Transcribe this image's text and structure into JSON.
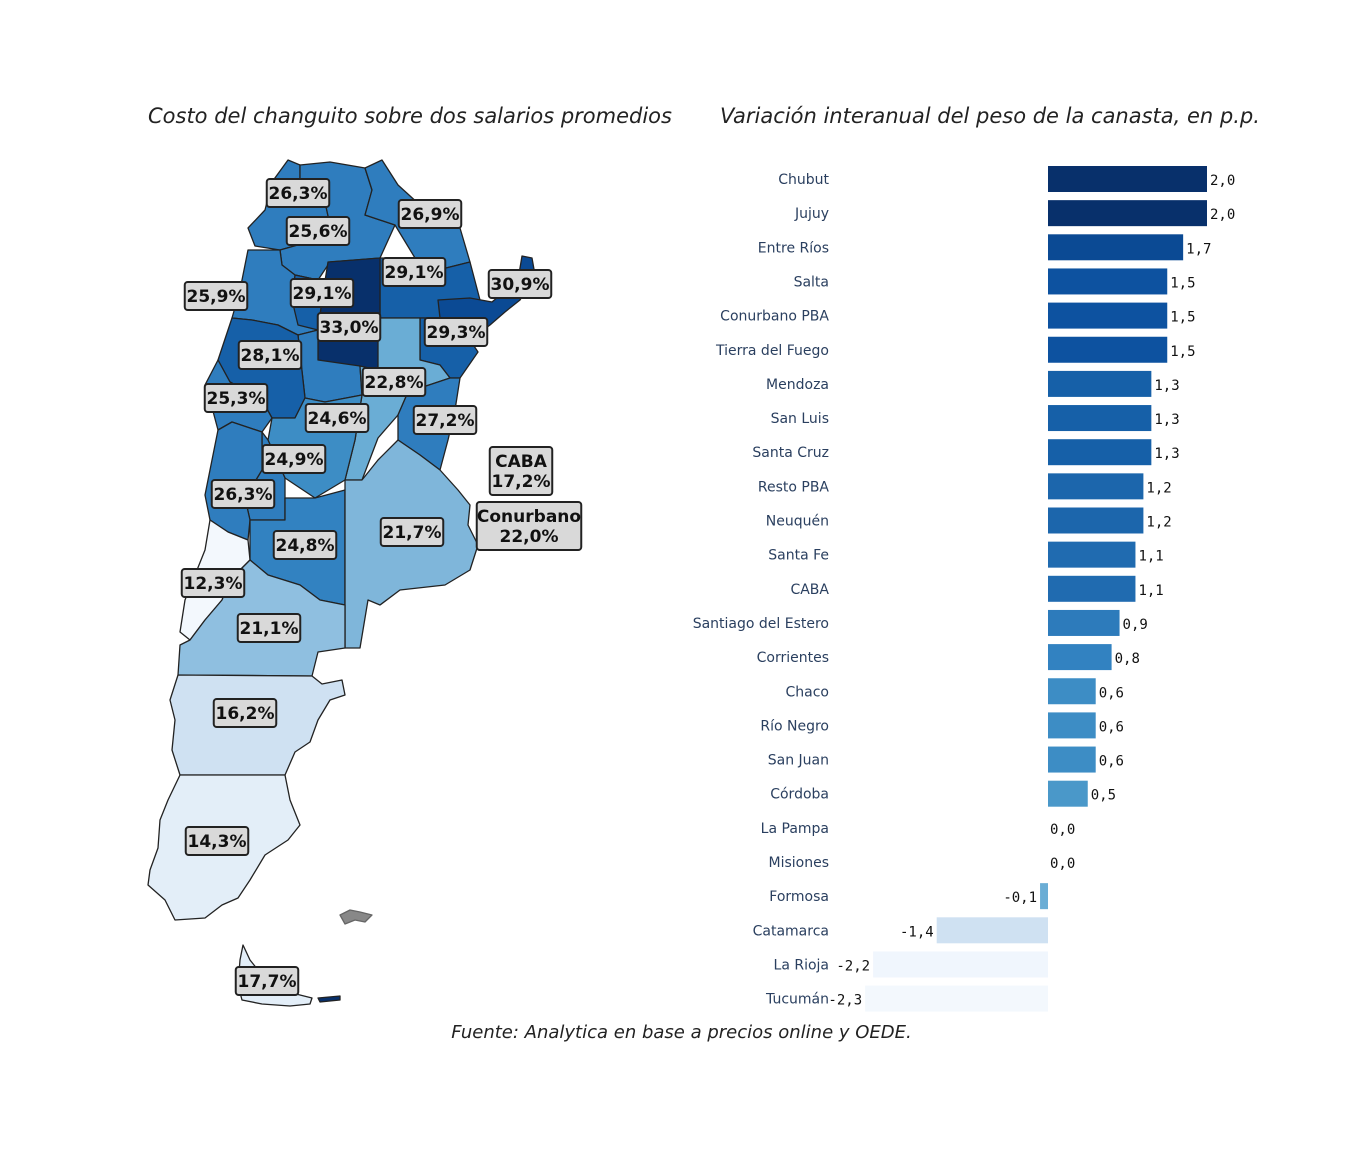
{
  "map": {
    "title": "Costo del changuito sobre dos salarios promedios",
    "colors": {
      "darkest": "#08306b",
      "dark": "#1660a8",
      "mid": "#3282c1",
      "light": "#7fb6da",
      "lighter": "#cfe1f2",
      "lightest": "#f3f8fd",
      "label_bg": "#d9d9d9"
    },
    "labels": [
      {
        "id": "jujuy",
        "text": "26,3%"
      },
      {
        "id": "misiones-top",
        "text": "26,9%"
      },
      {
        "id": "salta",
        "text": "25,6%"
      },
      {
        "id": "formosa",
        "text": "29,1%"
      },
      {
        "id": "misiones",
        "text": "30,9%"
      },
      {
        "id": "catamarca",
        "text": "25,9%"
      },
      {
        "id": "tucuman",
        "text": "29,1%"
      },
      {
        "id": "chaco",
        "text": "33,0%"
      },
      {
        "id": "corrientes",
        "text": "29,3%"
      },
      {
        "id": "larioja",
        "text": "28,1%"
      },
      {
        "id": "santafe",
        "text": "22,8%"
      },
      {
        "id": "sanjuan",
        "text": "25,3%"
      },
      {
        "id": "cordoba",
        "text": "24,6%"
      },
      {
        "id": "entrerios",
        "text": "27,2%"
      },
      {
        "id": "sanluis",
        "text": "24,9%"
      },
      {
        "id": "caba",
        "line1": "CABA",
        "line2": "17,2%"
      },
      {
        "id": "mendoza",
        "text": "26,3%"
      },
      {
        "id": "conurbano",
        "line1": "Conurbano",
        "line2": "22,0%"
      },
      {
        "id": "buenosaires",
        "text": "21,7%"
      },
      {
        "id": "lapampa",
        "text": "24,8%"
      },
      {
        "id": "neuquen",
        "text": "12,3%"
      },
      {
        "id": "rionegro",
        "text": "21,1%"
      },
      {
        "id": "chubut",
        "text": "16,2%"
      },
      {
        "id": "santacruz",
        "text": "14,3%"
      },
      {
        "id": "tierradelfuego",
        "text": "17,7%"
      }
    ]
  },
  "bar": {
    "title": "Variación interanual del peso de la canasta, en p.p."
  },
  "chart_data": {
    "type": "bar",
    "orientation": "horizontal",
    "title": "Variación interanual del peso de la canasta, en p.p.",
    "categories": [
      "Chubut",
      "Jujuy",
      "Entre Ríos",
      "Salta",
      "Conurbano PBA",
      "Tierra del Fuego",
      "Mendoza",
      "San Luis",
      "Santa Cruz",
      "Resto PBA",
      "Neuquén",
      "Santa Fe",
      "CABA",
      "Santiago del Estero",
      "Corrientes",
      "Chaco",
      "Río Negro",
      "San Juan",
      "Córdoba",
      "La Pampa",
      "Misiones",
      "Formosa",
      "Catamarca",
      "La Rioja",
      "Tucumán"
    ],
    "values": [
      2.0,
      2.0,
      1.7,
      1.5,
      1.5,
      1.5,
      1.3,
      1.3,
      1.3,
      1.2,
      1.2,
      1.1,
      1.1,
      0.9,
      0.8,
      0.6,
      0.6,
      0.6,
      0.5,
      0.0,
      0.0,
      -0.1,
      -1.4,
      -2.2,
      -2.3
    ],
    "value_labels": [
      "2,0",
      "2,0",
      "1,7",
      "1,5",
      "1,5",
      "1,5",
      "1,3",
      "1,3",
      "1,3",
      "1,2",
      "1,2",
      "1,1",
      "1,1",
      "0,9",
      "0,8",
      "0,6",
      "0,6",
      "0,6",
      "0,5",
      "0,0",
      "0,0",
      "-0,1",
      "-1,4",
      "-2,2",
      "-2,3"
    ],
    "colors": [
      "#08306b",
      "#08306b",
      "#0b4a94",
      "#0d52a0",
      "#0d52a0",
      "#0d52a0",
      "#1660a8",
      "#1660a8",
      "#1660a8",
      "#1c66ac",
      "#1c66ac",
      "#206bb0",
      "#206bb0",
      "#2d7bbb",
      "#3282c1",
      "#3d8dc5",
      "#3d8dc5",
      "#3d8dc5",
      "#4a98c9",
      "#6aadd5",
      "#6aadd5",
      "#6aadd5",
      "#cfe1f2",
      "#f0f6fd",
      "#f3f8fd"
    ],
    "xlim": [
      -2.3,
      2.0
    ],
    "grid": false,
    "legend": "none"
  },
  "source": "Fuente: Analytica en base a precios online y OEDE."
}
